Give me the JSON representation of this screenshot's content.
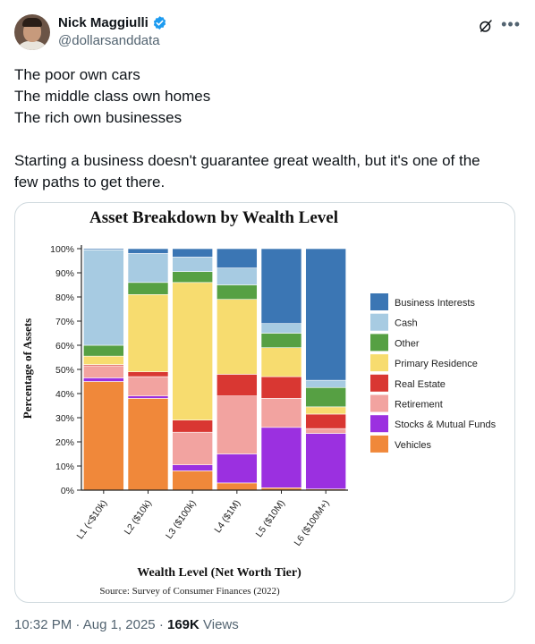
{
  "author": {
    "name": "Nick Maggiulli",
    "handle": "@dollarsanddata"
  },
  "tweet": {
    "lines": [
      "The poor own cars",
      "The middle class own homes",
      "The rich own businesses",
      "",
      "Starting a business doesn't guarantee great wealth, but it's one of the",
      "few paths to get there."
    ]
  },
  "meta": {
    "time": "10:32 PM",
    "date": "Aug 1, 2025",
    "views_count": "169K",
    "views_label": "Views"
  },
  "icons": {
    "verified": "verified-badge-icon",
    "grok": "grok-icon",
    "more": "more-icon"
  },
  "colors": {
    "verified": "#1d9bf0"
  },
  "chart_data": {
    "type": "bar",
    "stacked": true,
    "title": "Asset Breakdown by Wealth Level",
    "xlabel": "Wealth Level (Net Worth Tier)",
    "ylabel": "Percentage of Assets",
    "source": "Source: Survey of Consumer Finances (2022)",
    "ylim": [
      0,
      100
    ],
    "yticks": [
      "0%",
      "10%",
      "20%",
      "30%",
      "40%",
      "50%",
      "60%",
      "70%",
      "80%",
      "90%",
      "100%"
    ],
    "legend_position": "right",
    "categories": [
      "L1 (<$10k)",
      "L2 ($10k)",
      "L3 ($100k)",
      "L4 ($1M)",
      "L5 ($10M)",
      "L6 ($100M+)"
    ],
    "series": [
      {
        "name": "Vehicles",
        "color": "#f0883a",
        "values": [
          45,
          38,
          8,
          3,
          1,
          0.5
        ]
      },
      {
        "name": "Stocks & Mutual Funds",
        "color": "#9b30e0",
        "values": [
          1.5,
          1,
          2.5,
          12,
          25,
          23
        ]
      },
      {
        "name": "Retirement",
        "color": "#f2a3a0",
        "values": [
          5,
          8,
          13.5,
          24,
          12,
          2
        ]
      },
      {
        "name": "Real Estate",
        "color": "#d93732",
        "values": [
          0.5,
          2,
          5,
          9,
          9,
          6
        ]
      },
      {
        "name": "Primary Residence",
        "color": "#f7dc6f",
        "values": [
          3.5,
          32,
          57,
          31,
          12,
          3
        ]
      },
      {
        "name": "Other",
        "color": "#56a043",
        "values": [
          4.5,
          5,
          4.5,
          6,
          6,
          8
        ]
      },
      {
        "name": "Cash",
        "color": "#a7cbe2",
        "values": [
          39.5,
          12,
          6,
          7,
          4,
          3
        ]
      },
      {
        "name": "Business Interests",
        "color": "#3b76b4",
        "values": [
          0.5,
          2,
          3.5,
          8,
          31,
          54.5
        ]
      }
    ],
    "legend_order": [
      "Business Interests",
      "Cash",
      "Other",
      "Primary Residence",
      "Real Estate",
      "Retirement",
      "Stocks & Mutual Funds",
      "Vehicles"
    ]
  }
}
